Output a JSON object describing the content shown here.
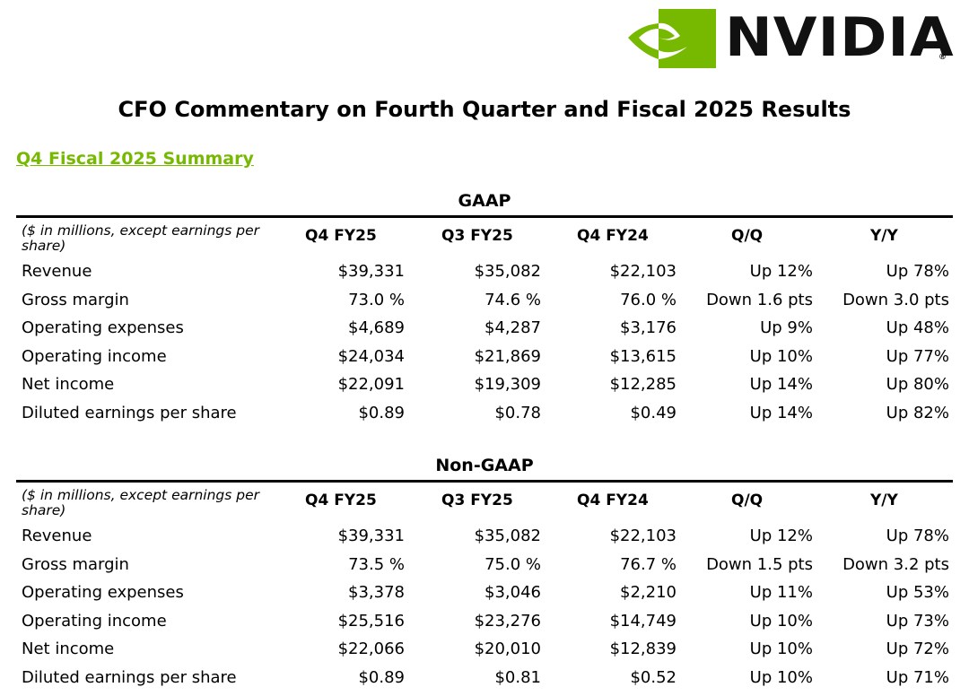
{
  "logo": {
    "wordmark": "NVIDIA",
    "registered": "®",
    "brand_color": "#76b900"
  },
  "page_title": "CFO Commentary on Fourth Quarter and Fiscal 2025 Results",
  "summary_link": "Q4 Fiscal 2025 Summary",
  "tables": [
    {
      "title": "GAAP",
      "note": "($ in millions, except earnings per share)",
      "columns": [
        "Q4 FY25",
        "Q3 FY25",
        "Q4 FY24",
        "Q/Q",
        "Y/Y"
      ],
      "rows": [
        {
          "metric": "Revenue",
          "values": [
            "$39,331",
            "$35,082",
            "$22,103",
            "Up 12%",
            "Up 78%"
          ]
        },
        {
          "metric": "Gross margin",
          "values": [
            "73.0 %",
            "74.6 %",
            "76.0 %",
            "Down 1.6 pts",
            "Down 3.0 pts"
          ]
        },
        {
          "metric": "Operating expenses",
          "values": [
            "$4,689",
            "$4,287",
            "$3,176",
            "Up 9%",
            "Up 48%"
          ]
        },
        {
          "metric": "Operating income",
          "values": [
            "$24,034",
            "$21,869",
            "$13,615",
            "Up 10%",
            "Up 77%"
          ]
        },
        {
          "metric": "Net income",
          "values": [
            "$22,091",
            "$19,309",
            "$12,285",
            "Up 14%",
            "Up 80%"
          ]
        },
        {
          "metric": "Diluted earnings per share",
          "values": [
            "$0.89",
            "$0.78",
            "$0.49",
            "Up 14%",
            "Up 82%"
          ]
        }
      ]
    },
    {
      "title": "Non-GAAP",
      "note": "($ in millions, except earnings per share)",
      "columns": [
        "Q4 FY25",
        "Q3 FY25",
        "Q4 FY24",
        "Q/Q",
        "Y/Y"
      ],
      "rows": [
        {
          "metric": "Revenue",
          "values": [
            "$39,331",
            "$35,082",
            "$22,103",
            "Up 12%",
            "Up 78%"
          ]
        },
        {
          "metric": "Gross margin",
          "values": [
            "73.5 %",
            "75.0 %",
            "76.7 %",
            "Down 1.5 pts",
            "Down 3.2 pts"
          ]
        },
        {
          "metric": "Operating expenses",
          "values": [
            "$3,378",
            "$3,046",
            "$2,210",
            "Up 11%",
            "Up 53%"
          ]
        },
        {
          "metric": "Operating income",
          "values": [
            "$25,516",
            "$23,276",
            "$14,749",
            "Up 10%",
            "Up 73%"
          ]
        },
        {
          "metric": "Net income",
          "values": [
            "$22,066",
            "$20,010",
            "$12,839",
            "Up 10%",
            "Up 72%"
          ]
        },
        {
          "metric": "Diluted earnings per share",
          "values": [
            "$0.89",
            "$0.81",
            "$0.52",
            "Up 10%",
            "Up 71%"
          ]
        }
      ]
    }
  ]
}
